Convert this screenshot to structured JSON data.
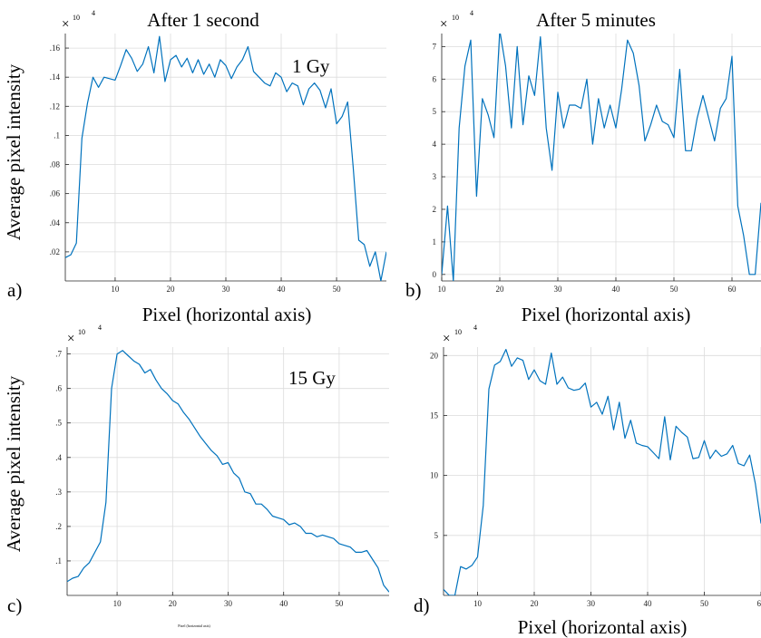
{
  "figure": {
    "titles": {
      "a": "After 1 second",
      "b": "After 5 minutes"
    },
    "panel_letters": {
      "a": "a)",
      "b": "b)",
      "c": "c)",
      "d": "d)"
    },
    "ylabel": "Average pixel intensity",
    "xlabel": "Pixel (horizontal axis)",
    "dose_labels": {
      "a": "1 Gy",
      "c": "15 Gy"
    },
    "exponent_base": "×",
    "exponent_label": "10",
    "exponent_power": "4",
    "tiny_xlabel_c": "Pixel (horizontal axis)"
  },
  "colors": {
    "series": "#0072bd",
    "grid": "#dcdcdc",
    "axis": "#262626"
  },
  "chart_data": [
    {
      "panel": "a",
      "type": "line",
      "title": "After 1 second",
      "ylabel": "Average pixel intensity",
      "xlabel": "Pixel (horizontal axis)",
      "annotation": "1 Gy",
      "exponent": "x10^4",
      "grid": true,
      "xlim": [
        1,
        59
      ],
      "ylim": [
        0,
        0.17
      ],
      "xticks": [
        10,
        20,
        30,
        40,
        50
      ],
      "yticks": [
        0.02,
        0.04,
        0.06,
        0.08,
        0.1,
        0.12,
        0.14,
        0.16
      ],
      "x": [
        1,
        2,
        3,
        4,
        5,
        6,
        7,
        8,
        9,
        10,
        11,
        12,
        13,
        14,
        15,
        16,
        17,
        18,
        19,
        20,
        21,
        22,
        23,
        24,
        25,
        26,
        27,
        28,
        29,
        30,
        31,
        32,
        33,
        34,
        35,
        36,
        37,
        38,
        39,
        40,
        41,
        42,
        43,
        44,
        45,
        46,
        47,
        48,
        49,
        50,
        51,
        52,
        53,
        54,
        55,
        56,
        57,
        58,
        59
      ],
      "y": [
        0.016,
        0.018,
        0.026,
        0.098,
        0.122,
        0.14,
        0.133,
        0.14,
        0.139,
        0.138,
        0.148,
        0.159,
        0.153,
        0.144,
        0.149,
        0.161,
        0.143,
        0.168,
        0.137,
        0.152,
        0.155,
        0.147,
        0.153,
        0.143,
        0.152,
        0.142,
        0.149,
        0.14,
        0.152,
        0.148,
        0.139,
        0.147,
        0.152,
        0.161,
        0.144,
        0.14,
        0.136,
        0.134,
        0.143,
        0.14,
        0.13,
        0.136,
        0.134,
        0.121,
        0.132,
        0.136,
        0.131,
        0.119,
        0.132,
        0.108,
        0.113,
        0.123,
        0.078,
        0.028,
        0.025,
        0.01,
        0.02,
        0.0,
        0.02
      ]
    },
    {
      "panel": "b",
      "type": "line",
      "title": "After 5 minutes",
      "ylabel": "",
      "xlabel": "Pixel (horizontal axis)",
      "exponent": "x10^4",
      "grid": true,
      "xlim": [
        10,
        65
      ],
      "ylim": [
        -0.2,
        7.4
      ],
      "xticks": [
        10,
        20,
        30,
        40,
        50,
        60
      ],
      "yticks": [
        0,
        1,
        2,
        3,
        4,
        5,
        6,
        7
      ],
      "x": [
        10,
        11,
        12,
        13,
        14,
        15,
        16,
        17,
        18,
        19,
        20,
        21,
        22,
        23,
        24,
        25,
        26,
        27,
        28,
        29,
        30,
        31,
        32,
        33,
        34,
        35,
        36,
        37,
        38,
        39,
        40,
        41,
        42,
        43,
        44,
        45,
        46,
        47,
        48,
        49,
        50,
        51,
        52,
        53,
        54,
        55,
        56,
        57,
        58,
        59,
        60,
        61,
        62,
        63,
        64,
        65
      ],
      "y": [
        0.0,
        2.1,
        -0.2,
        4.5,
        6.4,
        7.2,
        2.4,
        5.4,
        4.9,
        4.2,
        7.5,
        6.4,
        4.5,
        7.0,
        4.6,
        6.1,
        5.5,
        7.3,
        4.5,
        3.2,
        5.6,
        4.5,
        5.2,
        5.2,
        5.1,
        6.0,
        4.0,
        5.4,
        4.5,
        5.2,
        4.5,
        5.7,
        7.2,
        6.8,
        5.8,
        4.1,
        4.6,
        5.2,
        4.7,
        4.6,
        4.2,
        6.3,
        3.8,
        3.8,
        4.8,
        5.5,
        4.8,
        4.1,
        5.1,
        5.4,
        6.7,
        2.1,
        1.2,
        0.0,
        0.0,
        2.2
      ]
    },
    {
      "panel": "c",
      "type": "line",
      "title": "",
      "ylabel": "Average pixel intensity",
      "xlabel": "Pixel (horizontal axis)",
      "annotation": "15 Gy",
      "exponent": "x10^4",
      "grid": true,
      "xlim": [
        1,
        59
      ],
      "ylim": [
        0,
        0.72
      ],
      "xticks": [
        10,
        20,
        30,
        40,
        50
      ],
      "yticks": [
        0.1,
        0.2,
        0.3,
        0.4,
        0.5,
        0.6,
        0.7
      ],
      "x": [
        1,
        2,
        3,
        4,
        5,
        6,
        7,
        8,
        9,
        10,
        11,
        12,
        13,
        14,
        15,
        16,
        17,
        18,
        19,
        20,
        21,
        22,
        23,
        24,
        25,
        26,
        27,
        28,
        29,
        30,
        31,
        32,
        33,
        34,
        35,
        36,
        37,
        38,
        39,
        40,
        41,
        42,
        43,
        44,
        45,
        46,
        47,
        48,
        49,
        50,
        51,
        52,
        53,
        54,
        55,
        56,
        57,
        58,
        59
      ],
      "y": [
        0.04,
        0.05,
        0.055,
        0.08,
        0.095,
        0.125,
        0.155,
        0.27,
        0.6,
        0.7,
        0.71,
        0.695,
        0.68,
        0.67,
        0.645,
        0.655,
        0.625,
        0.6,
        0.585,
        0.565,
        0.555,
        0.53,
        0.51,
        0.485,
        0.46,
        0.44,
        0.42,
        0.405,
        0.38,
        0.385,
        0.355,
        0.34,
        0.3,
        0.295,
        0.265,
        0.265,
        0.25,
        0.23,
        0.225,
        0.22,
        0.205,
        0.21,
        0.2,
        0.18,
        0.18,
        0.17,
        0.175,
        0.17,
        0.165,
        0.15,
        0.145,
        0.14,
        0.125,
        0.125,
        0.13,
        0.105,
        0.08,
        0.03,
        0.01
      ]
    },
    {
      "panel": "d",
      "type": "line",
      "title": "",
      "ylabel": "",
      "xlabel": "Pixel (horizontal axis)",
      "exponent": "x10^4",
      "grid": true,
      "xlim": [
        4,
        60
      ],
      "ylim": [
        0,
        20.7
      ],
      "xticks": [
        10,
        20,
        30,
        40,
        50,
        60
      ],
      "yticks": [
        5,
        10,
        15,
        20
      ],
      "x": [
        4,
        5,
        6,
        7,
        8,
        9,
        10,
        11,
        12,
        13,
        14,
        15,
        16,
        17,
        18,
        19,
        20,
        21,
        22,
        23,
        24,
        25,
        26,
        27,
        28,
        29,
        30,
        31,
        32,
        33,
        34,
        35,
        36,
        37,
        38,
        39,
        40,
        41,
        42,
        43,
        44,
        45,
        46,
        47,
        48,
        49,
        50,
        51,
        52,
        53,
        54,
        55,
        56,
        57,
        58,
        59,
        60
      ],
      "y": [
        0.5,
        0.0,
        0.0,
        2.4,
        2.2,
        2.5,
        3.2,
        7.5,
        17.2,
        19.2,
        19.5,
        20.5,
        19.1,
        19.8,
        19.6,
        18.0,
        18.8,
        17.9,
        17.6,
        20.2,
        17.6,
        18.2,
        17.3,
        17.1,
        17.2,
        17.7,
        15.7,
        16.1,
        15.1,
        16.6,
        13.8,
        16.1,
        13.1,
        14.6,
        12.7,
        12.5,
        12.4,
        11.9,
        11.4,
        14.9,
        11.3,
        14.1,
        13.6,
        13.2,
        11.4,
        11.5,
        12.9,
        11.4,
        12.1,
        11.6,
        11.8,
        12.5,
        11.0,
        10.8,
        11.7,
        9.3,
        6.0
      ]
    }
  ]
}
